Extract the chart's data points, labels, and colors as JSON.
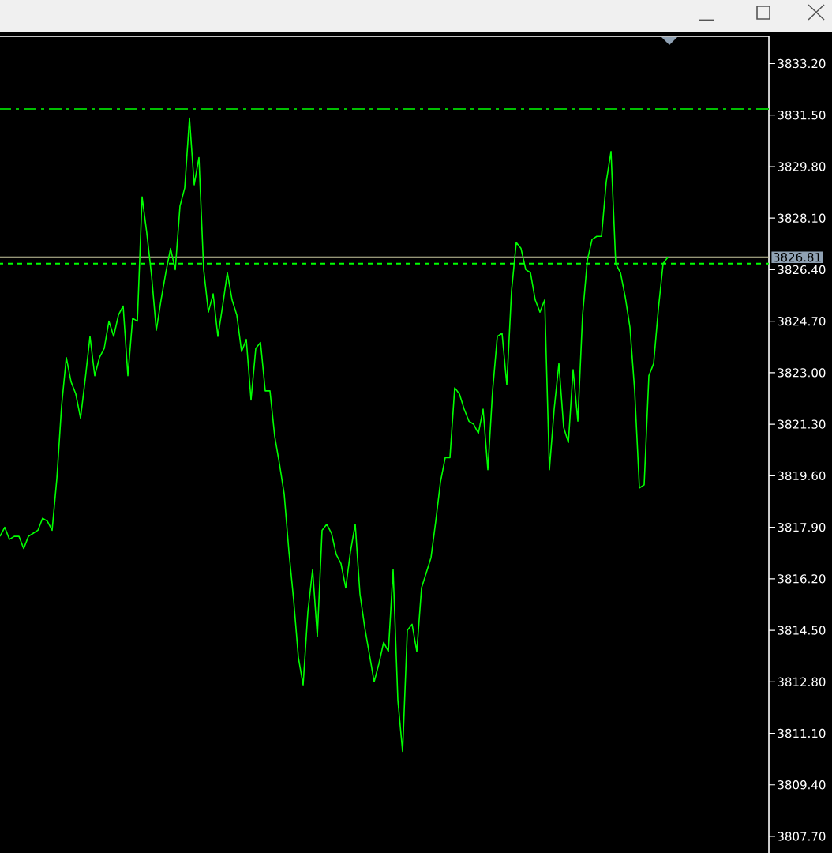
{
  "chart_data": {
    "type": "line",
    "categories": [
      null,
      null,
      null,
      null,
      null,
      null,
      null,
      null,
      null,
      null,
      null,
      null,
      null,
      null,
      null,
      null,
      null,
      null,
      null,
      null,
      null,
      null,
      null,
      null,
      null,
      null,
      null,
      null,
      null,
      null,
      null,
      null,
      null,
      null,
      null,
      null,
      null,
      null,
      null,
      null,
      null,
      null,
      null,
      null,
      null,
      null,
      null,
      null,
      null,
      null,
      null,
      null,
      null,
      null,
      null,
      null,
      null,
      null,
      null,
      null,
      null,
      null,
      null,
      null,
      null,
      null,
      null,
      null,
      null,
      null,
      null,
      null,
      null,
      null,
      null,
      null,
      null,
      null,
      null,
      null,
      null,
      null,
      null,
      null,
      null,
      null,
      null,
      null,
      null,
      null,
      null,
      null,
      null,
      null,
      null,
      null,
      null,
      null,
      null,
      null,
      null,
      null,
      null,
      null,
      null,
      null,
      null,
      null,
      null,
      null,
      null,
      null,
      null,
      null,
      null,
      null,
      null,
      null,
      null,
      null,
      null,
      null,
      null,
      null,
      null,
      null,
      null,
      null,
      null,
      null,
      null,
      null,
      null,
      null,
      null,
      null,
      null,
      null,
      null,
      null,
      null,
      null
    ],
    "series": [
      {
        "color": "#00ff00",
        "values": [
          3817.6,
          3817.9,
          3817.5,
          3817.6,
          3817.6,
          3817.2,
          3817.6,
          3817.7,
          3817.8,
          3818.2,
          3818.1,
          3817.8,
          3819.5,
          3821.9,
          3823.5,
          3822.7,
          3822.3,
          3821.5,
          3822.8,
          3824.2,
          3822.9,
          3823.5,
          3823.8,
          3824.7,
          3824.2,
          3824.9,
          3825.2,
          3822.9,
          3824.8,
          3824.7,
          3828.8,
          3827.6,
          3826.2,
          3824.4,
          3825.4,
          3826.3,
          3827.1,
          3826.4,
          3828.5,
          3829.1,
          3831.4,
          3829.2,
          3830.1,
          3826.4,
          3825.0,
          3825.6,
          3824.2,
          3825.2,
          3826.3,
          3825.4,
          3824.9,
          3823.7,
          3824.1,
          3822.1,
          3823.8,
          3824.0,
          3822.4,
          3822.4,
          3820.9,
          3820.0,
          3819.0,
          3817.1,
          3815.5,
          3813.6,
          3812.7,
          3815.1,
          3816.5,
          3814.3,
          3817.8,
          3818.0,
          3817.7,
          3817.0,
          3816.7,
          3815.9,
          3817.1,
          3818.0,
          3815.7,
          3814.6,
          3813.7,
          3812.8,
          3813.4,
          3814.1,
          3813.8,
          3816.5,
          3812.2,
          3810.5,
          3814.5,
          3814.7,
          3813.8,
          3815.9,
          3816.4,
          3816.9,
          3818.1,
          3819.4,
          3820.2,
          3820.2,
          3822.5,
          3822.3,
          3821.8,
          3821.4,
          3821.3,
          3821.0,
          3821.8,
          3819.8,
          3822.4,
          3824.2,
          3824.3,
          3822.6,
          3825.7,
          3827.3,
          3827.1,
          3826.4,
          3826.3,
          3825.4,
          3825.0,
          3825.4,
          3819.8,
          3821.8,
          3823.3,
          3821.2,
          3820.7,
          3823.1,
          3821.4,
          3824.9,
          3826.7,
          3827.4,
          3827.5,
          3827.5,
          3829.3,
          3830.3,
          3826.6,
          3826.3,
          3825.5,
          3824.5,
          3822.4,
          3819.2,
          3819.3,
          3822.9,
          3823.3,
          3825.1,
          3826.6,
          3826.81
        ]
      }
    ],
    "ylim": [
      3807.1,
      3834.1
    ],
    "yticks": [
      {
        "value": 3833.2,
        "label": "3833.20"
      },
      {
        "value": 3831.5,
        "label": "3831.50"
      },
      {
        "value": 3829.8,
        "label": "3829.80"
      },
      {
        "value": 3828.1,
        "label": "3828.10"
      },
      {
        "value": 3826.4,
        "label": "3826.40"
      },
      {
        "value": 3824.7,
        "label": "3824.70"
      },
      {
        "value": 3823.0,
        "label": "3823.00"
      },
      {
        "value": 3821.3,
        "label": "3821.30"
      },
      {
        "value": 3819.6,
        "label": "3819.60"
      },
      {
        "value": 3817.9,
        "label": "3817.90"
      },
      {
        "value": 3816.2,
        "label": "3816.20"
      },
      {
        "value": 3814.5,
        "label": "3814.50"
      },
      {
        "value": 3812.8,
        "label": "3812.80"
      },
      {
        "value": 3811.1,
        "label": "3811.10"
      },
      {
        "value": 3809.4,
        "label": "3809.40"
      },
      {
        "value": 3807.7,
        "label": "3807.70"
      }
    ],
    "ref_lines": [
      {
        "axis": "y",
        "value": 3831.7,
        "color": "#00c000",
        "line_style": "dashdot"
      },
      {
        "axis": "y",
        "value": 3826.6,
        "color": "#00ff00",
        "line_style": "dashed"
      },
      {
        "axis": "y",
        "value": 3826.81,
        "label": "3826.81",
        "color": "#c8c8a0",
        "line_style": "solid"
      }
    ]
  }
}
